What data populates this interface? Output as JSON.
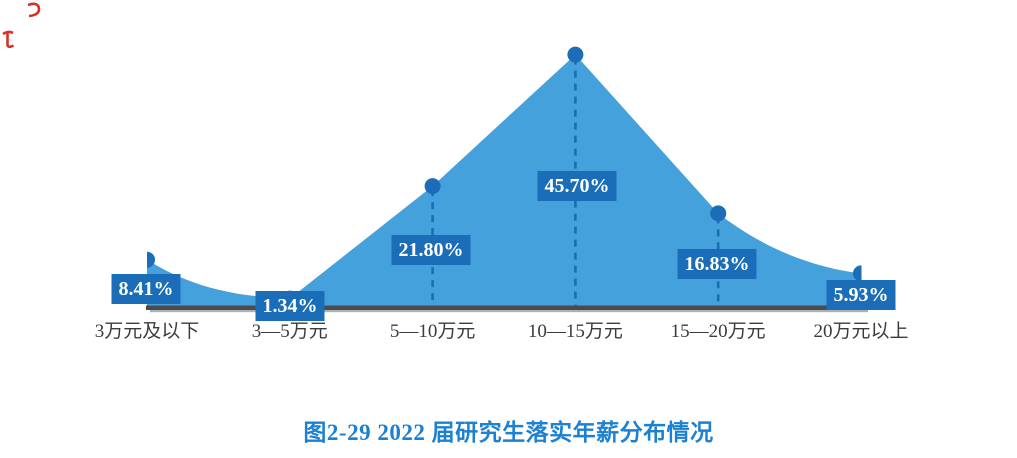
{
  "chart_data": {
    "type": "area",
    "title": "图2-29 2022 届研究生落实年薪分布情况",
    "categories": [
      "3万元及以下",
      "3—5万元",
      "5—10万元",
      "10—15万元",
      "15—20万元",
      "20万元以上"
    ],
    "values": [
      8.41,
      1.34,
      21.8,
      45.7,
      16.83,
      5.93
    ],
    "labels": [
      "8.41%",
      "1.34%",
      "21.80%",
      "45.70%",
      "16.83%",
      "5.93%"
    ],
    "xlabel": "",
    "ylabel": "",
    "ylim": [
      0,
      50
    ],
    "grid": false,
    "legend": false,
    "marker_style": "filled-circle",
    "dropline_points": [
      "5—10万元",
      "10—15万元",
      "15—20万元"
    ],
    "colors": {
      "area_fill": "#45A1DC",
      "marker": "#1A6DB6",
      "label_box_bg": "#1A6DB6",
      "label_text": "#FFFFFF",
      "dashed_line": "#1A6DB6",
      "baseline_dark": "#4B4B4D",
      "baseline_shadow": "#AEB1B3",
      "axis_label_text": "#3B3B3D",
      "title_text": "#1C80D3",
      "corner_mark_red": "#D93025"
    }
  }
}
